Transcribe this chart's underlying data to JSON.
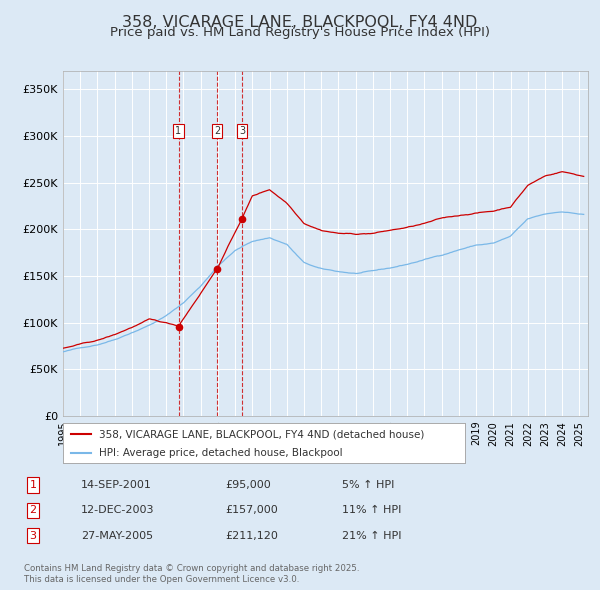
{
  "title": "358, VICARAGE LANE, BLACKPOOL, FY4 4ND",
  "subtitle": "Price paid vs. HM Land Registry's House Price Index (HPI)",
  "title_fontsize": 11.5,
  "subtitle_fontsize": 9.5,
  "ylim": [
    0,
    370000
  ],
  "yticks": [
    0,
    50000,
    100000,
    150000,
    200000,
    250000,
    300000,
    350000
  ],
  "ytick_labels": [
    "£0",
    "£50K",
    "£100K",
    "£150K",
    "£200K",
    "£250K",
    "£300K",
    "£350K"
  ],
  "background_color": "#dce9f5",
  "plot_bg_color": "#dce9f5",
  "grid_color": "#ffffff",
  "sale_color": "#cc0000",
  "hpi_color": "#7ab8e8",
  "sale_label": "358, VICARAGE LANE, BLACKPOOL, FY4 4ND (detached house)",
  "hpi_label": "HPI: Average price, detached house, Blackpool",
  "purchases": [
    {
      "num": 1,
      "date_str": "14-SEP-2001",
      "price": 95000,
      "pct": "5%",
      "date_x": 2001.71
    },
    {
      "num": 2,
      "date_str": "12-DEC-2003",
      "price": 157000,
      "pct": "11%",
      "date_x": 2003.95
    },
    {
      "num": 3,
      "date_str": "27-MAY-2005",
      "price": 211120,
      "pct": "21%",
      "date_x": 2005.4
    }
  ],
  "footer_line1": "Contains HM Land Registry data © Crown copyright and database right 2025.",
  "footer_line2": "This data is licensed under the Open Government Licence v3.0.",
  "xmin": 1995.0,
  "xmax": 2025.5,
  "hpi_knots_t": [
    1995,
    1996,
    1997,
    1998,
    1999,
    2000,
    2001,
    2002,
    2003,
    2004,
    2005,
    2006,
    2007,
    2008,
    2009,
    2010,
    2011,
    2012,
    2013,
    2014,
    2015,
    2016,
    2017,
    2018,
    2019,
    2020,
    2021,
    2022,
    2023,
    2024,
    2025.25
  ],
  "hpi_knots_v": [
    68000,
    72000,
    76000,
    82000,
    90000,
    98000,
    108000,
    122000,
    140000,
    162000,
    178000,
    188000,
    192000,
    185000,
    165000,
    158000,
    155000,
    153000,
    155000,
    158000,
    162000,
    167000,
    172000,
    178000,
    183000,
    185000,
    192000,
    210000,
    215000,
    218000,
    215000
  ],
  "sale_knots_t": [
    1995,
    1996,
    1997,
    1998,
    1999,
    2000,
    2001.71,
    2003.95,
    2005.4,
    2006,
    2007,
    2008,
    2009,
    2010,
    2011,
    2012,
    2013,
    2014,
    2015,
    2016,
    2017,
    2018,
    2019,
    2020,
    2021,
    2022,
    2023,
    2024,
    2025.25
  ],
  "sale_knots_v": [
    72000,
    76000,
    80000,
    86000,
    94000,
    102000,
    95000,
    157000,
    211120,
    235000,
    242000,
    228000,
    207000,
    200000,
    197000,
    196000,
    197000,
    200000,
    203000,
    207000,
    212000,
    215000,
    218000,
    220000,
    225000,
    248000,
    258000,
    263000,
    258000
  ]
}
